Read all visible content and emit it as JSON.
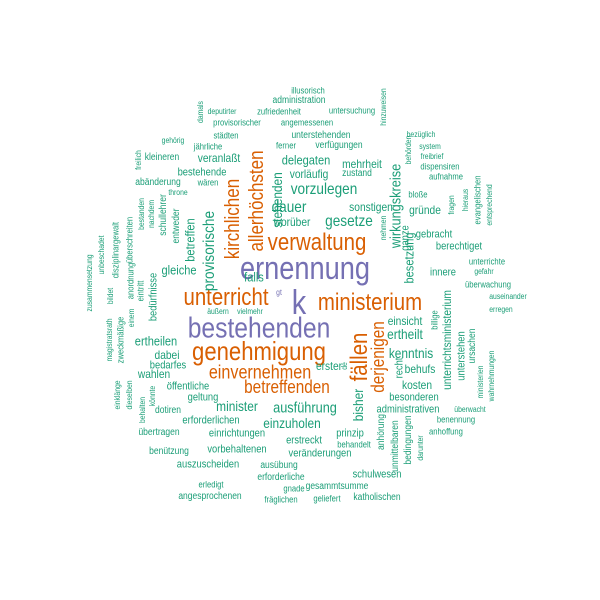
{
  "colors": {
    "purple": "#7570b3",
    "orange": "#d95f02",
    "teal": "#1b9e77"
  },
  "words": [
    "ernennung",
    "k",
    "bestehenden",
    "verwaltung",
    "genehmigung",
    "unterricht",
    "ministerium",
    "allerhöchsten",
    "kirchlichen",
    "fällen",
    "derjenigen",
    "einvernehmen",
    "betreffenden",
    "delegaten",
    "vorzulegen",
    "dauer",
    "gesetze",
    "wirkungskreise",
    "provisorische",
    "stehenden",
    "gleiche",
    "falls",
    "betreffen",
    "ertheilt",
    "kenntnis",
    "ertheilen",
    "minister",
    "ausführung",
    "einzuholen",
    "unterrichtsministerium",
    "bisher",
    "besetzung",
    "mehrheit",
    "veranlaßt",
    "vorläufig",
    "bestehende",
    "gründe",
    "sonstigen",
    "worüber",
    "kosten",
    "behufs",
    "einsicht",
    "erster",
    "dabei",
    "wahlen",
    "öffentliche",
    "geltung",
    "besonderen",
    "administrativen",
    "erforderlichen",
    "einrichtungen",
    "erstreckt",
    "vorbehaltenen",
    "veränderungen",
    "prinzip",
    "bedarfes",
    "dotiren",
    "übertragen",
    "benützung",
    "auszuscheiden",
    "ausübung",
    "schulwesen",
    "erforderliche",
    "gesammtsumme",
    "erledigt",
    "gnade",
    "katholischen",
    "angesprochenen",
    "fräglichen",
    "geliefert",
    "behandelt",
    "anhoffung",
    "benennung",
    "überwacht",
    "unterstehen",
    "ursachen",
    "ministerien",
    "wahrnehmungen",
    "recht",
    "billige",
    "innere",
    "gebracht",
    "berechtiget",
    "ganze",
    "nehmen",
    "unterrichte",
    "gefahr",
    "überwachung",
    "auseinander",
    "erregen",
    "fragen",
    "hieraus",
    "evangelischen",
    "entsprechend",
    "bloße",
    "aufnahme",
    "dispensiren",
    "freibrief",
    "system",
    "bezüglich",
    "behörden",
    "hinzuweisen",
    "illusorisch",
    "administration",
    "damals",
    "deputirter",
    "zufriedenheit",
    "untersuchung",
    "provisorischer",
    "angemessenen",
    "gehörig",
    "städten",
    "unterstehenden",
    "ferner",
    "verfügungen",
    "jährliche",
    "kleineren",
    "zustand",
    "abänderung",
    "wären",
    "throne",
    "freilich",
    "schullehrer",
    "entweder",
    "bestanden",
    "nachdem",
    "überschreiten",
    "disziplinargewalt",
    "unbeschadet",
    "zusammensetzung",
    "bildet",
    "anordnung",
    "eintritt",
    "bedürfnisse",
    "einem",
    "zweckmäßige",
    "magistratsrath",
    "einklänge",
    "dieselben",
    "behalten",
    "könnte",
    "äußern",
    "vielmehr",
    "gt",
    "de",
    "anhörung",
    "unmittelbaren",
    "bedingungen",
    "darunter"
  ]
}
